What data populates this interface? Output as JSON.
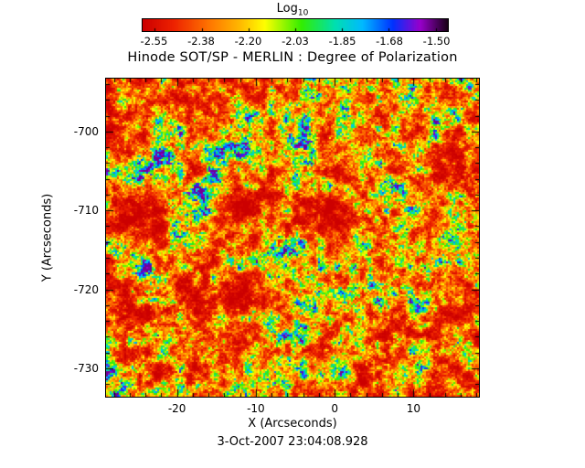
{
  "chart_data": {
    "type": "heatmap",
    "title": "Hinode SOT/SP - MERLIN : Degree of Polarization",
    "xlabel": "X (Arcseconds)",
    "ylabel": "Y (Arcseconds)",
    "timestamp": "3-Oct-2007 23:04:08.928",
    "x_range": [
      -29,
      18.3
    ],
    "y_range": [
      -693.3,
      -733.6
    ],
    "y_axis_direction": "values decrease downward",
    "x_major_ticks": [
      -20,
      -10,
      0,
      10
    ],
    "y_major_ticks": [
      -700,
      -710,
      -720,
      -730
    ],
    "minor_tick_step": 2,
    "major_tick_interval": 10,
    "grid": false,
    "colorbar": {
      "label": "Log",
      "label_subscript": "10",
      "orientation": "horizontal",
      "position": "top",
      "tick_labels": [
        "-2.55",
        "-2.38",
        "-2.20",
        "-2.03",
        "-1.85",
        "-1.68",
        "-1.50"
      ],
      "value_min": -2.6,
      "value_max": -1.45
    },
    "colormap": [
      {
        "t": 0.0,
        "color": "#cc0000"
      },
      {
        "t": 0.1,
        "color": "#ee2200"
      },
      {
        "t": 0.22,
        "color": "#ff7700"
      },
      {
        "t": 0.32,
        "color": "#ffbb00"
      },
      {
        "t": 0.4,
        "color": "#ffff00"
      },
      {
        "t": 0.52,
        "color": "#33ee00"
      },
      {
        "t": 0.63,
        "color": "#00e0b0"
      },
      {
        "t": 0.72,
        "color": "#00bbff"
      },
      {
        "t": 0.82,
        "color": "#0033ff"
      },
      {
        "t": 0.91,
        "color": "#9900cc"
      },
      {
        "t": 1.0,
        "color": "#1a001a"
      }
    ],
    "field_description": "Granular solar noise field of log10 degree of polarization: dominated by values near -2.45 to -2.15 (red/orange with yellow speckle), with scattered patches reaching -2.0 to -1.6 (green/cyan/blue) and rare dark cores",
    "noise_seed": 20071003,
    "text_color": "#000000",
    "background_color": "#ffffff"
  }
}
